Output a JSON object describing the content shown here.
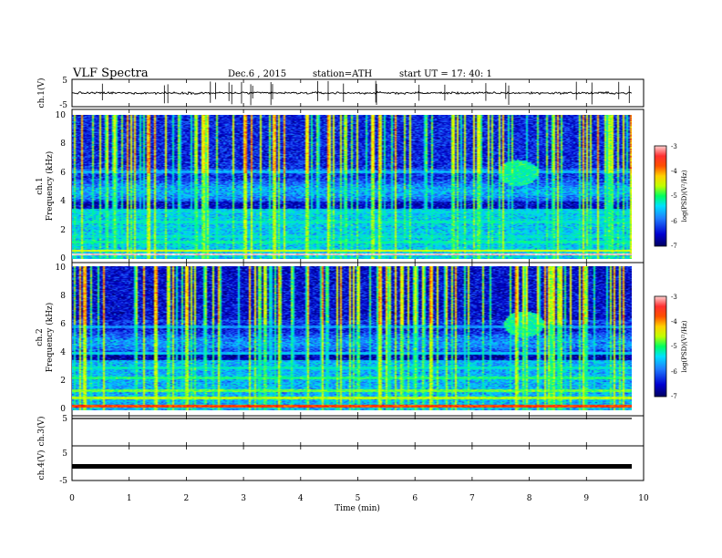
{
  "header": {
    "title": "VLF  Spectra",
    "date": "Dec.6  , 2015",
    "station": "station=ATH",
    "start": "start  UT  =    17: 40: 1"
  },
  "colors": {
    "spectrogram_ramp": [
      "#000060",
      "#0000c8",
      "#2060ff",
      "#00d0ff",
      "#00ff80",
      "#c0ff00",
      "#ffff00",
      "#ff8000",
      "#ff0000",
      "#ff9090",
      "#ffffff"
    ],
    "trace": "#000000"
  },
  "chart_data": [
    {
      "type": "line",
      "name": "ch1-waveform",
      "ylabel": "ch.1(V)",
      "yticks": [
        "5",
        "-5"
      ],
      "ylim": [
        -5,
        5
      ],
      "xlim": [
        0,
        10
      ],
      "approx_level_V": 0.0,
      "approx_noise_V": 1.0
    },
    {
      "type": "heatmap",
      "name": "ch1-spectrogram",
      "ylabel": [
        "ch.1",
        "Frequency  (kHz)"
      ],
      "yticks": [
        "0",
        "2",
        "4",
        "6",
        "8",
        "10"
      ],
      "ylim": [
        0,
        10
      ],
      "xlim": [
        0,
        9.8
      ],
      "colorbar": {
        "label": "log(PSD)(V²/Hz)",
        "ticks": [
          "-3",
          "-4",
          "-5",
          "-6",
          "-7"
        ],
        "range": [
          -7,
          -3
        ]
      },
      "background_level": -6.6,
      "bands_kHz": [
        {
          "f": 0.35,
          "level": -3.2
        },
        {
          "f": 0.6,
          "level": -4.8
        },
        {
          "f": 1.2,
          "level": -5.5
        },
        {
          "f": 1.6,
          "level": -5.7
        },
        {
          "f": 2.6,
          "level": -5.6
        },
        {
          "f": 3.3,
          "level": -5.8
        },
        {
          "f": 6.1,
          "level": -5.9
        }
      ],
      "features": [
        "impulsive sferics across 0-10 kHz",
        "bursts around 7.8 min near 6 kHz"
      ]
    },
    {
      "type": "heatmap",
      "name": "ch2-spectrogram",
      "ylabel": [
        "ch.2",
        "Frequency  (kHz)"
      ],
      "yticks": [
        "0",
        "2",
        "4",
        "6",
        "8",
        "10"
      ],
      "ylim": [
        0,
        10
      ],
      "xlim": [
        0,
        9.8
      ],
      "colorbar": {
        "label": "log(PSD)(V²/Hz)",
        "ticks": [
          "-3",
          "-4",
          "-5",
          "-6",
          "-7"
        ],
        "range": [
          -7,
          -3
        ]
      },
      "background_level": -6.7,
      "bands_kHz": [
        {
          "f": 0.3,
          "level": -4.0
        },
        {
          "f": 0.9,
          "level": -5.0
        },
        {
          "f": 1.4,
          "level": -5.2
        },
        {
          "f": 2.3,
          "level": -5.4
        },
        {
          "f": 3.0,
          "level": -5.6
        },
        {
          "f": 4.0,
          "level": -5.8
        },
        {
          "f": 5.8,
          "level": -6.0
        }
      ],
      "features": [
        "impulsive sferics across 0-10 kHz",
        "emission blob near 6 kHz around 7.8-8.2 min"
      ]
    },
    {
      "type": "line",
      "name": "ch3-waveform",
      "ylabel": "ch.3(V)",
      "yticks": [
        "5"
      ],
      "ylim": [
        -5,
        5
      ],
      "xlim": [
        0,
        10
      ],
      "approx_level_V": 5.0
    },
    {
      "type": "line",
      "name": "ch4-waveform",
      "ylabel": "ch.4(V)",
      "yticks": [
        "5",
        "-5"
      ],
      "ylim": [
        -5,
        5
      ],
      "xlim": [
        0,
        10
      ],
      "approx_level_V": 0.0
    }
  ],
  "xaxis": {
    "label": "Time  (min)",
    "ticks": [
      "0",
      "1",
      "2",
      "3",
      "4",
      "5",
      "6",
      "7",
      "8",
      "9",
      "10"
    ]
  }
}
